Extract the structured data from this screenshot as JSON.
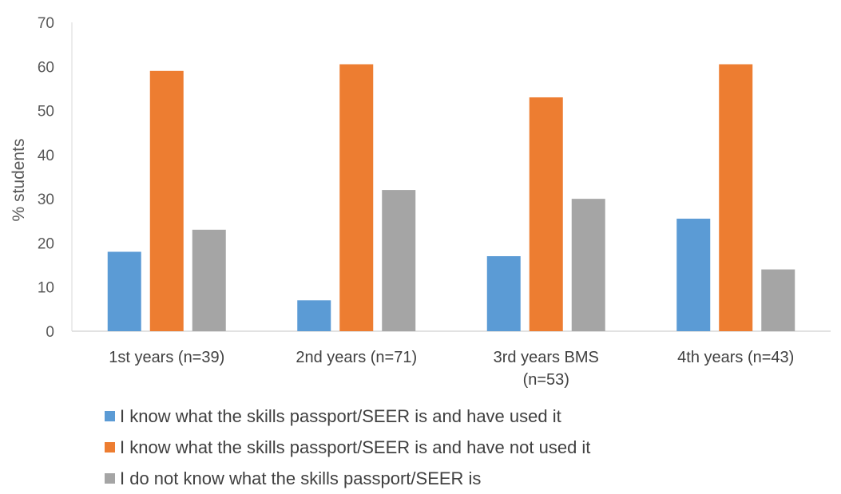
{
  "chart_data": {
    "type": "bar",
    "title": "",
    "xlabel": "",
    "ylabel": "% students",
    "ylim": [
      0,
      70
    ],
    "yticks": [
      0,
      10,
      20,
      30,
      40,
      50,
      60,
      70
    ],
    "grid": false,
    "legend_position": "bottom-left",
    "categories": [
      [
        "1st years (n=39)"
      ],
      [
        "2nd years (n=71)"
      ],
      [
        "3rd years BMS",
        "(n=53)"
      ],
      [
        "4th years (n=43)"
      ]
    ],
    "series": [
      {
        "name": "I know what the skills passport/SEER is and have used it",
        "color": "#5b9bd5",
        "values": [
          18,
          7,
          17,
          25.5
        ]
      },
      {
        "name": "I know what the skills passport/SEER is and have not used it",
        "color": "#ed7d31",
        "values": [
          59,
          60.5,
          53,
          60.5
        ]
      },
      {
        "name": "I do not know what the skills passport/SEER is",
        "color": "#a5a5a5",
        "values": [
          23,
          32,
          30,
          14
        ]
      }
    ]
  }
}
